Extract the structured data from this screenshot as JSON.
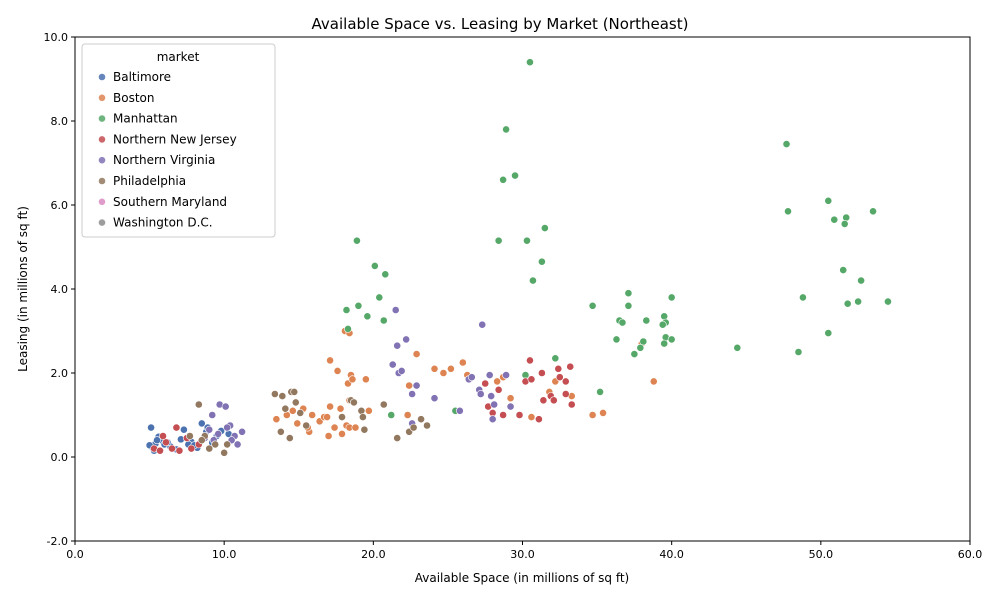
{
  "chart_data": {
    "type": "scatter",
    "title": "Available Space vs. Leasing by Market (Northeast)",
    "xlabel": "Available Space (in millions of sq ft)",
    "ylabel": "Leasing (in millions of sq ft)",
    "xlim": [
      0,
      60
    ],
    "ylim": [
      -2,
      10
    ],
    "xticks": [
      "0.0",
      "10.0",
      "20.0",
      "30.0",
      "40.0",
      "50.0",
      "60.0"
    ],
    "yticks": [
      "-2.0",
      "0.0",
      "2.0",
      "4.0",
      "6.0",
      "8.0",
      "10.0"
    ],
    "grid": false,
    "legend": {
      "title": "market",
      "placement": "top-left"
    },
    "series": [
      {
        "name": "Baltimore",
        "color": "#4c72b0",
        "points": [
          [
            5.1,
            0.7
          ],
          [
            5.2,
            0.22
          ],
          [
            5.4,
            0.32
          ],
          [
            5.6,
            0.48
          ],
          [
            5.8,
            0.4
          ],
          [
            6.0,
            0.3
          ],
          [
            5.3,
            0.15
          ],
          [
            6.4,
            0.25
          ],
          [
            7.3,
            0.65
          ],
          [
            7.8,
            0.36
          ],
          [
            8.5,
            0.8
          ],
          [
            8.8,
            0.6
          ],
          [
            9.2,
            0.34
          ],
          [
            9.8,
            0.62
          ],
          [
            10.3,
            0.55
          ],
          [
            5.0,
            0.28
          ],
          [
            6.8,
            0.18
          ],
          [
            7.1,
            0.42
          ],
          [
            8.2,
            0.22
          ],
          [
            9.5,
            0.5
          ],
          [
            5.5,
            0.4
          ],
          [
            6.2,
            0.35
          ],
          [
            7.6,
            0.3
          ],
          [
            8.0,
            0.28
          ],
          [
            8.9,
            0.7
          ]
        ]
      },
      {
        "name": "Boston",
        "color": "#dd8452",
        "points": [
          [
            13.5,
            0.9
          ],
          [
            14.2,
            1.0
          ],
          [
            14.6,
            1.1
          ],
          [
            14.9,
            0.8
          ],
          [
            15.3,
            1.15
          ],
          [
            15.7,
            0.6
          ],
          [
            15.9,
            1.0
          ],
          [
            16.4,
            0.85
          ],
          [
            16.7,
            0.95
          ],
          [
            17.0,
            0.5
          ],
          [
            17.1,
            1.2
          ],
          [
            17.4,
            0.7
          ],
          [
            17.8,
            1.15
          ],
          [
            17.9,
            0.55
          ],
          [
            18.2,
            0.75
          ],
          [
            18.4,
            0.7
          ],
          [
            18.8,
            0.7
          ],
          [
            17.1,
            2.3
          ],
          [
            17.6,
            2.05
          ],
          [
            18.3,
            1.75
          ],
          [
            18.5,
            1.95
          ],
          [
            18.6,
            1.85
          ],
          [
            19.5,
            1.85
          ],
          [
            18.1,
            3.0
          ],
          [
            18.4,
            2.95
          ],
          [
            22.4,
            1.7
          ],
          [
            22.9,
            2.45
          ],
          [
            24.1,
            2.1
          ],
          [
            24.7,
            2.0
          ],
          [
            25.2,
            2.1
          ],
          [
            26.0,
            2.25
          ],
          [
            26.3,
            1.95
          ],
          [
            28.3,
            1.8
          ],
          [
            28.7,
            1.9
          ],
          [
            29.2,
            1.4
          ],
          [
            30.6,
            0.95
          ],
          [
            31.8,
            1.55
          ],
          [
            32.2,
            1.8
          ],
          [
            33.3,
            1.45
          ],
          [
            34.7,
            1.0
          ],
          [
            35.4,
            1.05
          ],
          [
            38.8,
            1.8
          ],
          [
            38.0,
            2.7
          ],
          [
            22.3,
            1.0
          ],
          [
            19.7,
            1.1
          ],
          [
            16.9,
            0.95
          ],
          [
            15.6,
            0.7
          ],
          [
            18.4,
            1.35
          ]
        ]
      },
      {
        "name": "Manhattan",
        "color": "#55a868",
        "points": [
          [
            30.5,
            9.4
          ],
          [
            28.9,
            7.8
          ],
          [
            28.7,
            6.6
          ],
          [
            29.5,
            6.7
          ],
          [
            47.7,
            7.45
          ],
          [
            47.8,
            5.85
          ],
          [
            50.5,
            6.1
          ],
          [
            50.9,
            5.65
          ],
          [
            51.7,
            5.7
          ],
          [
            51.6,
            5.55
          ],
          [
            53.5,
            5.85
          ],
          [
            31.5,
            5.45
          ],
          [
            28.4,
            5.15
          ],
          [
            30.3,
            5.15
          ],
          [
            31.3,
            4.65
          ],
          [
            30.7,
            4.2
          ],
          [
            18.9,
            5.15
          ],
          [
            20.1,
            4.55
          ],
          [
            20.8,
            4.35
          ],
          [
            20.4,
            3.8
          ],
          [
            19.0,
            3.6
          ],
          [
            18.2,
            3.5
          ],
          [
            19.6,
            3.35
          ],
          [
            20.7,
            3.25
          ],
          [
            18.3,
            3.05
          ],
          [
            51.5,
            4.45
          ],
          [
            52.7,
            4.2
          ],
          [
            48.8,
            3.8
          ],
          [
            51.8,
            3.65
          ],
          [
            52.5,
            3.7
          ],
          [
            54.5,
            3.7
          ],
          [
            37.1,
            3.9
          ],
          [
            40.0,
            3.8
          ],
          [
            34.7,
            3.6
          ],
          [
            37.1,
            3.6
          ],
          [
            36.5,
            3.25
          ],
          [
            36.7,
            3.2
          ],
          [
            38.3,
            3.25
          ],
          [
            39.5,
            3.35
          ],
          [
            39.6,
            3.2
          ],
          [
            39.4,
            3.15
          ],
          [
            36.3,
            2.8
          ],
          [
            38.1,
            2.75
          ],
          [
            39.6,
            2.85
          ],
          [
            40.0,
            2.8
          ],
          [
            37.9,
            2.6
          ],
          [
            39.5,
            2.7
          ],
          [
            37.5,
            2.45
          ],
          [
            44.4,
            2.6
          ],
          [
            48.5,
            2.5
          ],
          [
            50.5,
            2.95
          ],
          [
            32.2,
            2.35
          ],
          [
            35.2,
            1.55
          ],
          [
            30.2,
            1.95
          ],
          [
            21.2,
            1.0
          ],
          [
            25.5,
            1.1
          ]
        ]
      },
      {
        "name": "Northern New Jersey",
        "color": "#c44e52",
        "points": [
          [
            5.3,
            0.2
          ],
          [
            5.7,
            0.15
          ],
          [
            6.1,
            0.35
          ],
          [
            6.5,
            0.2
          ],
          [
            6.8,
            0.7
          ],
          [
            7.0,
            0.15
          ],
          [
            7.5,
            0.45
          ],
          [
            7.8,
            0.2
          ],
          [
            8.3,
            0.3
          ],
          [
            5.9,
            0.5
          ],
          [
            27.5,
            1.75
          ],
          [
            27.7,
            1.2
          ],
          [
            28.0,
            1.05
          ],
          [
            28.4,
            1.6
          ],
          [
            28.7,
            1.0
          ],
          [
            29.8,
            1.0
          ],
          [
            30.2,
            1.8
          ],
          [
            30.5,
            2.3
          ],
          [
            30.6,
            1.85
          ],
          [
            31.1,
            0.9
          ],
          [
            31.3,
            2.0
          ],
          [
            31.4,
            1.35
          ],
          [
            31.9,
            1.45
          ],
          [
            32.1,
            1.35
          ],
          [
            32.4,
            2.1
          ],
          [
            32.5,
            1.9
          ],
          [
            32.9,
            1.8
          ],
          [
            32.9,
            1.5
          ],
          [
            33.2,
            2.15
          ],
          [
            33.3,
            1.25
          ]
        ]
      },
      {
        "name": "Northern Virginia",
        "color": "#8172b3",
        "points": [
          [
            21.3,
            2.2
          ],
          [
            21.7,
            2.0
          ],
          [
            21.9,
            2.05
          ],
          [
            21.5,
            3.5
          ],
          [
            21.6,
            2.65
          ],
          [
            22.2,
            2.8
          ],
          [
            22.6,
            1.5
          ],
          [
            22.9,
            1.7
          ],
          [
            24.1,
            1.4
          ],
          [
            25.8,
            1.1
          ],
          [
            26.4,
            1.85
          ],
          [
            26.6,
            1.9
          ],
          [
            27.1,
            1.6
          ],
          [
            27.2,
            1.5
          ],
          [
            27.3,
            3.15
          ],
          [
            27.8,
            1.95
          ],
          [
            27.9,
            1.45
          ],
          [
            28.0,
            0.9
          ],
          [
            28.1,
            1.25
          ],
          [
            28.9,
            1.95
          ],
          [
            29.2,
            1.2
          ],
          [
            22.6,
            0.8
          ],
          [
            9.2,
            1.0
          ],
          [
            9.7,
            1.25
          ],
          [
            10.1,
            1.2
          ],
          [
            10.4,
            0.75
          ],
          [
            10.7,
            0.5
          ],
          [
            11.2,
            0.6
          ],
          [
            9.0,
            0.65
          ],
          [
            9.6,
            0.55
          ],
          [
            10.2,
            0.7
          ],
          [
            8.7,
            0.45
          ],
          [
            9.3,
            0.4
          ],
          [
            10.5,
            0.4
          ],
          [
            10.9,
            0.3
          ]
        ]
      },
      {
        "name": "Philadelphia",
        "color": "#937860",
        "points": [
          [
            13.4,
            1.5
          ],
          [
            13.9,
            1.45
          ],
          [
            14.5,
            1.55
          ],
          [
            14.8,
            1.3
          ],
          [
            14.1,
            1.15
          ],
          [
            13.8,
            0.6
          ],
          [
            14.4,
            0.45
          ],
          [
            15.5,
            0.75
          ],
          [
            17.9,
            0.95
          ],
          [
            18.5,
            1.35
          ],
          [
            18.7,
            1.3
          ],
          [
            19.2,
            1.1
          ],
          [
            19.3,
            0.95
          ],
          [
            19.4,
            0.65
          ],
          [
            20.7,
            1.25
          ],
          [
            21.6,
            0.45
          ],
          [
            22.4,
            0.6
          ],
          [
            23.2,
            0.9
          ],
          [
            23.6,
            0.75
          ],
          [
            8.3,
            1.25
          ],
          [
            8.7,
            0.5
          ],
          [
            9.0,
            0.2
          ],
          [
            9.4,
            0.3
          ],
          [
            10.0,
            0.1
          ],
          [
            10.2,
            0.3
          ],
          [
            7.7,
            0.5
          ],
          [
            8.5,
            0.4
          ],
          [
            22.7,
            0.7
          ],
          [
            14.7,
            1.55
          ],
          [
            15.1,
            1.05
          ]
        ]
      },
      {
        "name": "Southern Maryland",
        "color": "#da8bc3",
        "points": []
      },
      {
        "name": "Washington D.C.",
        "color": "#8c8c8c",
        "points": []
      }
    ]
  }
}
